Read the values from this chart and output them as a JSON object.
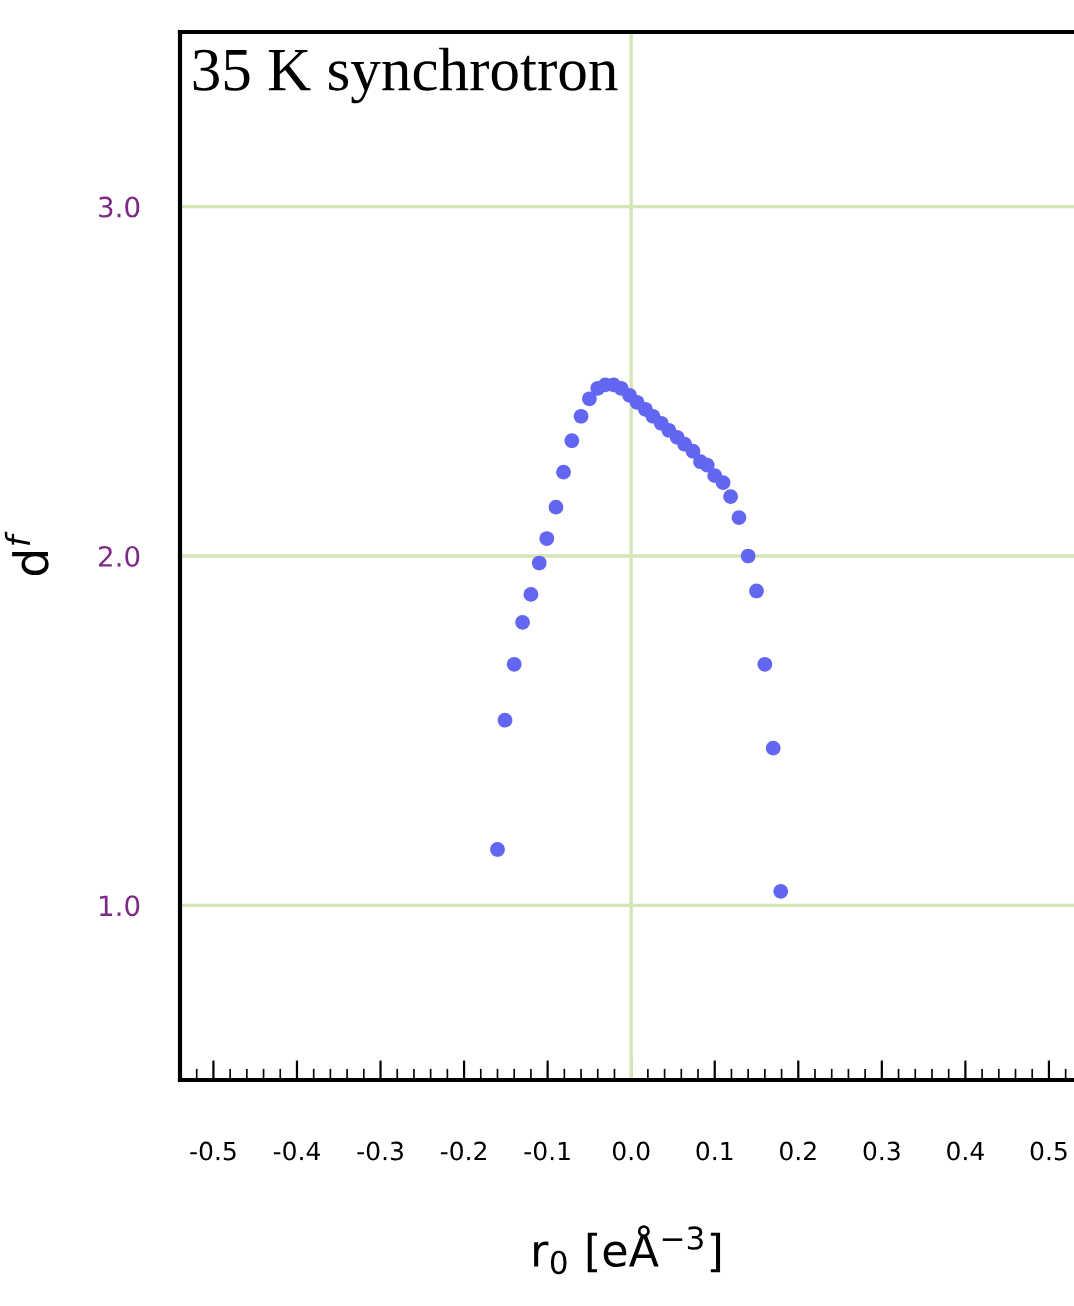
{
  "chart_data": {
    "type": "scatter",
    "title": "35 K synchrotron",
    "xlabel": "r$_{0}$ [eÅ$^{−3}$]",
    "ylabel": "d$^{f}$",
    "xlim": [
      -0.54,
      0.53
    ],
    "ylim": [
      0.5,
      3.5
    ],
    "xticks": [
      -0.5,
      -0.4,
      -0.3,
      -0.2,
      -0.1,
      {
        "value": 0,
        "label": "0.0"
      },
      0.1,
      0.2,
      0.3,
      0.4,
      0.5
    ],
    "yticks": [
      {
        "value": 1,
        "label": "1.0"
      },
      {
        "value": 2,
        "label": "2.0"
      },
      {
        "value": 3,
        "label": "3.0"
      }
    ],
    "grid": "y",
    "marker": "circle",
    "ref_lines": [
      {
        "axis": "x",
        "value": 0.0,
        "color": "#d4e6b5"
      }
    ],
    "series": [
      {
        "color": "#6366f0",
        "x": [
          -0.16,
          -0.151,
          -0.14,
          -0.13,
          -0.12,
          -0.11,
          -0.101,
          -0.09,
          -0.081,
          -0.071,
          -0.06,
          -0.05,
          -0.04,
          -0.031,
          -0.021,
          -0.012,
          -0.002,
          0.007,
          0.017,
          0.026,
          0.036,
          0.045,
          0.055,
          0.064,
          0.074,
          0.083,
          0.091,
          0.1,
          0.11,
          0.119,
          0.129,
          0.14,
          0.15,
          0.16,
          0.17,
          0.179
        ],
        "values": [
          1.16,
          1.53,
          1.69,
          1.81,
          1.89,
          1.98,
          2.05,
          2.14,
          2.24,
          2.33,
          2.4,
          2.45,
          2.48,
          2.49,
          2.49,
          2.48,
          2.46,
          2.44,
          2.42,
          2.4,
          2.38,
          2.36,
          2.34,
          2.32,
          2.3,
          2.27,
          2.26,
          2.23,
          2.21,
          2.17,
          2.11,
          2.0,
          1.9,
          1.69,
          1.45,
          1.04
        ]
      }
    ]
  }
}
